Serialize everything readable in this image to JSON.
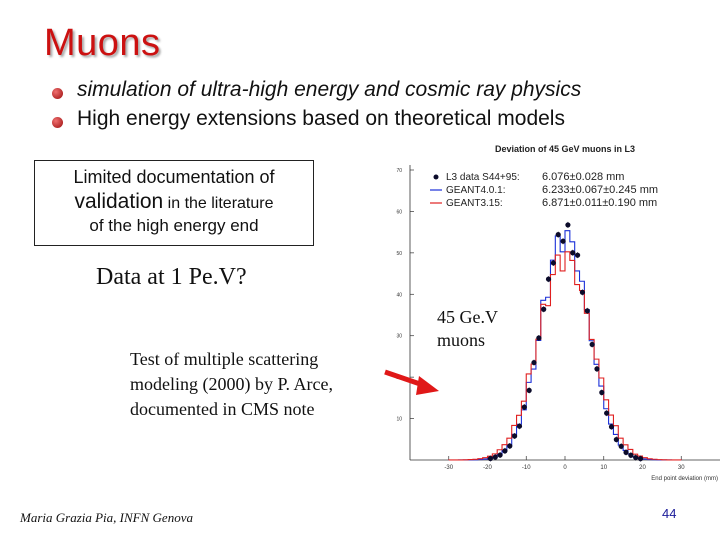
{
  "title": "Muons",
  "bullets": [
    {
      "text": "simulation of ultra-high energy and cosmic ray physics",
      "italic": true
    },
    {
      "text": "High energy extensions based on theoretical models",
      "italic": false
    }
  ],
  "box": {
    "line1": "Limited documentation of",
    "line2_big": "validation",
    "line2_rest": " in the literature",
    "line3": "of the high energy end"
  },
  "data_question": "Data at 1 Pe.V?",
  "caption": "Test of multiple scattering modeling (2000) by P. Arce, documented in CMS note",
  "muons_note": {
    "line1": "45 Ge.V",
    "line2": "muons"
  },
  "author": "Maria Grazia Pia, INFN Genova",
  "page_number": "44",
  "colors": {
    "title": "#cc1111",
    "data": "#0b0b2a",
    "geant4": "#1a2fd8",
    "geant3": "#e02020",
    "arrow": "#e01818"
  },
  "chart_data": {
    "type": "line",
    "title": "Deviation of 45 GeV muons in L3",
    "xlabel": "End point deviation (mm)",
    "ylabel": "",
    "xlim": [
      -40,
      40
    ],
    "ylim": [
      0,
      70
    ],
    "xticks": [
      "-30",
      "-20",
      "-10",
      "0",
      "10",
      "20",
      "30"
    ],
    "yticks": [
      "10",
      "20",
      "30",
      "40",
      "50",
      "60",
      "70"
    ],
    "legend": [
      {
        "label": "L3 data S44+95:",
        "value": "6.076±0.028 mm"
      },
      {
        "label": "GEANT4.0.1:",
        "value": "6.233±0.067±0.245 mm"
      },
      {
        "label": "GEANT3.15:",
        "value": "6.871±0.011±0.190 mm"
      }
    ],
    "legend_position": "top-left",
    "series": [
      {
        "name": "L3 data S44+95",
        "style": "points",
        "sigma": 6.076,
        "peak": 55
      },
      {
        "name": "GEANT4.0.1",
        "style": "histogram",
        "sigma": 6.233,
        "peak": 54
      },
      {
        "name": "GEANT3.15",
        "style": "histogram",
        "sigma": 6.871,
        "peak": 49
      }
    ]
  }
}
